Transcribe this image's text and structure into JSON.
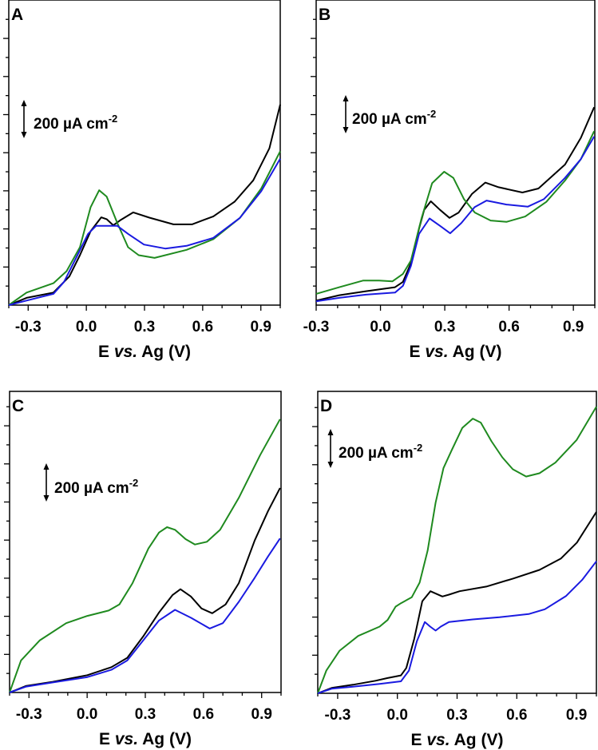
{
  "chart_data": [
    {
      "type": "line",
      "panel": "A",
      "xlabel_parts": [
        "E ",
        "vs.",
        " Ag (V)"
      ],
      "ylabel": "",
      "xlim": [
        -0.4,
        1.0
      ],
      "xticks": [
        -0.3,
        0.0,
        0.3,
        0.6,
        0.9
      ],
      "xtick_labels": [
        "-0.3",
        "0.0",
        "0.3",
        "0.6",
        "0.9"
      ],
      "ytick_step": 100,
      "grid": false,
      "scale_bar": {
        "value": "200",
        "unit": "µA cm",
        "exp": "-2"
      },
      "series": [
        {
          "color": "#000000",
          "points": [
            [
              -0.4,
              0
            ],
            [
              -0.308,
              38
            ],
            [
              -0.17,
              66
            ],
            [
              -0.088,
              150
            ],
            [
              -0.033,
              262
            ],
            [
              0.022,
              388
            ],
            [
              0.077,
              461
            ],
            [
              0.105,
              451
            ],
            [
              0.139,
              419
            ],
            [
              0.174,
              445
            ],
            [
              0.242,
              487
            ],
            [
              0.325,
              459
            ],
            [
              0.449,
              424
            ],
            [
              0.545,
              424
            ],
            [
              0.655,
              466
            ],
            [
              0.765,
              543
            ],
            [
              0.861,
              655
            ],
            [
              0.944,
              823
            ],
            [
              1.0,
              1053
            ]
          ]
        },
        {
          "color": "#1f8a1f",
          "points": [
            [
              -0.4,
              0
            ],
            [
              -0.308,
              66
            ],
            [
              -0.17,
              115
            ],
            [
              -0.102,
              178
            ],
            [
              -0.033,
              304
            ],
            [
              0.022,
              514
            ],
            [
              0.066,
              603
            ],
            [
              0.105,
              570
            ],
            [
              0.16,
              430
            ],
            [
              0.215,
              304
            ],
            [
              0.27,
              262
            ],
            [
              0.352,
              248
            ],
            [
              0.517,
              290
            ],
            [
              0.655,
              346
            ],
            [
              0.792,
              458
            ],
            [
              0.902,
              612
            ],
            [
              1.0,
              808
            ]
          ]
        },
        {
          "color": "#1a1ae0",
          "points": [
            [
              -0.4,
              0
            ],
            [
              -0.308,
              24
            ],
            [
              -0.17,
              59
            ],
            [
              -0.115,
              122
            ],
            [
              -0.046,
              262
            ],
            [
              0.009,
              374
            ],
            [
              0.05,
              416
            ],
            [
              0.16,
              416
            ],
            [
              0.215,
              374
            ],
            [
              0.297,
              318
            ],
            [
              0.407,
              297
            ],
            [
              0.517,
              311
            ],
            [
              0.655,
              353
            ],
            [
              0.792,
              458
            ],
            [
              0.902,
              598
            ],
            [
              1.0,
              769
            ]
          ]
        }
      ]
    },
    {
      "type": "line",
      "panel": "B",
      "xlabel_parts": [
        "E ",
        "vs.",
        " Ag (V)"
      ],
      "ylabel": "",
      "xlim": [
        -0.3,
        1.0
      ],
      "xticks": [
        -0.3,
        0.0,
        0.3,
        0.6,
        0.9
      ],
      "xtick_labels": [
        "-0.3",
        "0.0",
        "0.3",
        "0.6",
        "0.9"
      ],
      "ytick_step": 100,
      "grid": false,
      "scale_bar": {
        "value": "200",
        "unit": "µA cm",
        "exp": "-2"
      },
      "series": [
        {
          "color": "#000000",
          "points": [
            [
              -0.3,
              24
            ],
            [
              -0.192,
              52
            ],
            [
              -0.068,
              73
            ],
            [
              0.068,
              94
            ],
            [
              0.105,
              122
            ],
            [
              0.142,
              220
            ],
            [
              0.18,
              402
            ],
            [
              0.204,
              500
            ],
            [
              0.235,
              545
            ],
            [
              0.278,
              500
            ],
            [
              0.322,
              458
            ],
            [
              0.365,
              486
            ],
            [
              0.427,
              584
            ],
            [
              0.489,
              643
            ],
            [
              0.551,
              619
            ],
            [
              0.662,
              591
            ],
            [
              0.737,
              612
            ],
            [
              0.861,
              738
            ],
            [
              0.935,
              878
            ],
            [
              0.997,
              1039
            ]
          ]
        },
        {
          "color": "#1f8a1f",
          "points": [
            [
              -0.3,
              59
            ],
            [
              -0.192,
              94
            ],
            [
              -0.08,
              129
            ],
            [
              -0.006,
              129
            ],
            [
              0.056,
              125
            ],
            [
              0.105,
              164
            ],
            [
              0.142,
              234
            ],
            [
              0.192,
              458
            ],
            [
              0.241,
              640
            ],
            [
              0.297,
              700
            ],
            [
              0.34,
              668
            ],
            [
              0.39,
              556
            ],
            [
              0.44,
              486
            ],
            [
              0.514,
              444
            ],
            [
              0.588,
              437
            ],
            [
              0.675,
              465
            ],
            [
              0.774,
              542
            ],
            [
              0.861,
              654
            ],
            [
              0.935,
              766
            ],
            [
              0.997,
              913
            ]
          ]
        },
        {
          "color": "#1a1ae0",
          "points": [
            [
              -0.3,
              20
            ],
            [
              -0.192,
              38
            ],
            [
              -0.068,
              55
            ],
            [
              0.068,
              66
            ],
            [
              0.105,
              101
            ],
            [
              0.142,
              206
            ],
            [
              0.18,
              374
            ],
            [
              0.229,
              455
            ],
            [
              0.278,
              416
            ],
            [
              0.325,
              377
            ],
            [
              0.377,
              430
            ],
            [
              0.439,
              514
            ],
            [
              0.495,
              549
            ],
            [
              0.588,
              528
            ],
            [
              0.688,
              517
            ],
            [
              0.762,
              556
            ],
            [
              0.861,
              668
            ],
            [
              0.935,
              766
            ],
            [
              0.997,
              885
            ]
          ]
        }
      ]
    },
    {
      "type": "line",
      "panel": "C",
      "xlabel_parts": [
        "E ",
        "vs.",
        " Ag (V)"
      ],
      "ylabel": "",
      "xlim": [
        -0.4,
        1.0
      ],
      "xticks": [
        -0.3,
        0.0,
        0.3,
        0.6,
        0.9
      ],
      "xtick_labels": [
        "-0.3",
        "0.0",
        "0.3",
        "0.6",
        "0.9"
      ],
      "ytick_step": 100,
      "grid": false,
      "scale_bar": {
        "value": "200",
        "unit": "µA cm",
        "exp": "-2"
      },
      "series": [
        {
          "color": "#000000",
          "points": [
            [
              -0.4,
              0
            ],
            [
              -0.314,
              35
            ],
            [
              -0.177,
              56
            ],
            [
              0.001,
              91
            ],
            [
              0.125,
              133
            ],
            [
              0.207,
              182
            ],
            [
              0.289,
              294
            ],
            [
              0.371,
              420
            ],
            [
              0.44,
              511
            ],
            [
              0.481,
              542
            ],
            [
              0.535,
              504
            ],
            [
              0.59,
              441
            ],
            [
              0.645,
              416
            ],
            [
              0.714,
              462
            ],
            [
              0.782,
              574
            ],
            [
              0.864,
              798
            ],
            [
              0.933,
              952
            ],
            [
              0.995,
              1074
            ]
          ]
        },
        {
          "color": "#1f8a1f",
          "points": [
            [
              -0.4,
              0
            ],
            [
              -0.341,
              168
            ],
            [
              -0.245,
              273
            ],
            [
              -0.108,
              364
            ],
            [
              0.001,
              402
            ],
            [
              0.111,
              430
            ],
            [
              0.166,
              462
            ],
            [
              0.234,
              574
            ],
            [
              0.316,
              756
            ],
            [
              0.371,
              840
            ],
            [
              0.412,
              868
            ],
            [
              0.453,
              854
            ],
            [
              0.508,
              805
            ],
            [
              0.556,
              777
            ],
            [
              0.618,
              791
            ],
            [
              0.686,
              854
            ],
            [
              0.782,
              1022
            ],
            [
              0.892,
              1246
            ],
            [
              0.995,
              1435
            ]
          ]
        },
        {
          "color": "#1a1ae0",
          "points": [
            [
              -0.4,
              0
            ],
            [
              -0.314,
              31
            ],
            [
              -0.177,
              53
            ],
            [
              0.001,
              81
            ],
            [
              0.125,
              119
            ],
            [
              0.207,
              168
            ],
            [
              0.289,
              273
            ],
            [
              0.371,
              378
            ],
            [
              0.453,
              434
            ],
            [
              0.536,
              392
            ],
            [
              0.632,
              336
            ],
            [
              0.7,
              364
            ],
            [
              0.782,
              476
            ],
            [
              0.864,
              602
            ],
            [
              0.933,
              714
            ],
            [
              0.995,
              809
            ]
          ]
        }
      ]
    },
    {
      "type": "line",
      "panel": "D",
      "xlabel_parts": [
        "E ",
        "vs.",
        " Ag (V)"
      ],
      "ylabel": "",
      "xlim": [
        -0.4,
        1.0
      ],
      "xticks": [
        -0.3,
        0.0,
        0.3,
        0.6,
        0.9
      ],
      "xtick_labels": [
        "-0.3",
        "0.0",
        "0.3",
        "0.6",
        "0.9"
      ],
      "ytick_step": 100,
      "grid": false,
      "scale_bar": {
        "value": "200",
        "unit": "µA cm",
        "exp": "-2"
      },
      "series": [
        {
          "color": "#000000",
          "points": [
            [
              -0.4,
              0
            ],
            [
              -0.33,
              28
            ],
            [
              -0.223,
              45
            ],
            [
              -0.11,
              66
            ],
            [
              -0.049,
              80
            ],
            [
              0.018,
              94
            ],
            [
              0.045,
              133
            ],
            [
              0.085,
              287
            ],
            [
              0.125,
              483
            ],
            [
              0.166,
              536
            ],
            [
              0.226,
              508
            ],
            [
              0.259,
              518
            ],
            [
              0.313,
              536
            ],
            [
              0.447,
              560
            ],
            [
              0.581,
              602
            ],
            [
              0.714,
              648
            ],
            [
              0.821,
              707
            ],
            [
              0.902,
              791
            ],
            [
              1.0,
              952
            ]
          ]
        },
        {
          "color": "#1f8a1f",
          "points": [
            [
              -0.4,
              0
            ],
            [
              -0.357,
              119
            ],
            [
              -0.29,
              224
            ],
            [
              -0.197,
              301
            ],
            [
              -0.089,
              350
            ],
            [
              -0.049,
              385
            ],
            [
              -0.009,
              455
            ],
            [
              0.018,
              473
            ],
            [
              0.072,
              504
            ],
            [
              0.112,
              581
            ],
            [
              0.152,
              749
            ],
            [
              0.192,
              1001
            ],
            [
              0.232,
              1183
            ],
            [
              0.272,
              1274
            ],
            [
              0.326,
              1393
            ],
            [
              0.379,
              1442
            ],
            [
              0.419,
              1421
            ],
            [
              0.473,
              1323
            ],
            [
              0.527,
              1239
            ],
            [
              0.58,
              1176
            ],
            [
              0.647,
              1138
            ],
            [
              0.714,
              1155
            ],
            [
              0.794,
              1211
            ],
            [
              0.901,
              1330
            ],
            [
              1.0,
              1505
            ]
          ]
        },
        {
          "color": "#1a1ae0",
          "points": [
            [
              -0.4,
              0
            ],
            [
              -0.33,
              24
            ],
            [
              -0.223,
              35
            ],
            [
              -0.089,
              49
            ],
            [
              0.018,
              63
            ],
            [
              0.058,
              119
            ],
            [
              0.098,
              273
            ],
            [
              0.138,
              374
            ],
            [
              0.165,
              350
            ],
            [
              0.192,
              329
            ],
            [
              0.218,
              350
            ],
            [
              0.259,
              374
            ],
            [
              0.379,
              388
            ],
            [
              0.513,
              399
            ],
            [
              0.66,
              416
            ],
            [
              0.741,
              441
            ],
            [
              0.848,
              511
            ],
            [
              0.928,
              595
            ],
            [
              1.0,
              693
            ]
          ]
        }
      ]
    }
  ]
}
